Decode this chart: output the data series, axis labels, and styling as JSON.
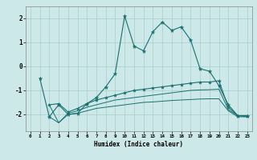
{
  "title": "",
  "xlabel": "Humidex (Indice chaleur)",
  "bg_color": "#cce8e8",
  "grid_color": "#aacccc",
  "line_color": "#1a7070",
  "xlim": [
    -0.5,
    23.5
  ],
  "ylim": [
    -2.7,
    2.5
  ],
  "yticks": [
    -2,
    -1,
    0,
    1,
    2
  ],
  "xticks": [
    0,
    1,
    2,
    3,
    4,
    5,
    6,
    7,
    8,
    9,
    10,
    11,
    12,
    13,
    14,
    15,
    16,
    17,
    18,
    19,
    20,
    21,
    22,
    23
  ],
  "line1_x": [
    1,
    2,
    3,
    4,
    5,
    6,
    7,
    8,
    9,
    10,
    11,
    12,
    13,
    14,
    15,
    16,
    17,
    18,
    19,
    20,
    21,
    22,
    23
  ],
  "line1_y": [
    -0.5,
    -2.1,
    -1.6,
    -2.0,
    -1.95,
    -1.55,
    -1.3,
    -0.85,
    -0.3,
    2.1,
    0.85,
    0.65,
    1.45,
    1.85,
    1.5,
    1.65,
    1.1,
    -0.1,
    -0.2,
    -0.8,
    -1.6,
    -2.05,
    -2.05
  ],
  "line2_x": [
    2,
    3,
    4,
    5,
    6,
    7,
    8,
    9,
    10,
    11,
    12,
    13,
    14,
    15,
    16,
    17,
    18,
    19,
    20,
    21,
    22,
    23
  ],
  "line2_y": [
    -1.6,
    -1.55,
    -1.9,
    -1.75,
    -1.55,
    -1.4,
    -1.3,
    -1.2,
    -1.1,
    -1.0,
    -0.95,
    -0.9,
    -0.85,
    -0.8,
    -0.75,
    -0.7,
    -0.65,
    -0.65,
    -0.6,
    -1.7,
    -2.05,
    -2.05
  ],
  "line3_x": [
    2,
    3,
    4,
    5,
    6,
    7,
    8,
    9,
    10,
    11,
    12,
    13,
    14,
    15,
    16,
    17,
    18,
    19,
    20,
    21,
    22,
    23
  ],
  "line3_y": [
    -1.6,
    -2.35,
    -1.95,
    -1.85,
    -1.7,
    -1.6,
    -1.5,
    -1.4,
    -1.35,
    -1.3,
    -1.25,
    -1.2,
    -1.15,
    -1.1,
    -1.05,
    -1.0,
    -0.98,
    -0.97,
    -0.95,
    -1.8,
    -2.05,
    -2.1
  ],
  "line4_x": [
    2,
    3,
    4,
    5,
    6,
    7,
    8,
    9,
    10,
    11,
    12,
    13,
    14,
    15,
    16,
    17,
    18,
    19,
    20,
    21,
    22,
    23
  ],
  "line4_y": [
    -2.1,
    -2.35,
    -2.0,
    -1.95,
    -1.85,
    -1.75,
    -1.7,
    -1.65,
    -1.6,
    -1.55,
    -1.5,
    -1.48,
    -1.45,
    -1.42,
    -1.4,
    -1.38,
    -1.36,
    -1.35,
    -1.35,
    -1.85,
    -2.1,
    -2.1
  ]
}
